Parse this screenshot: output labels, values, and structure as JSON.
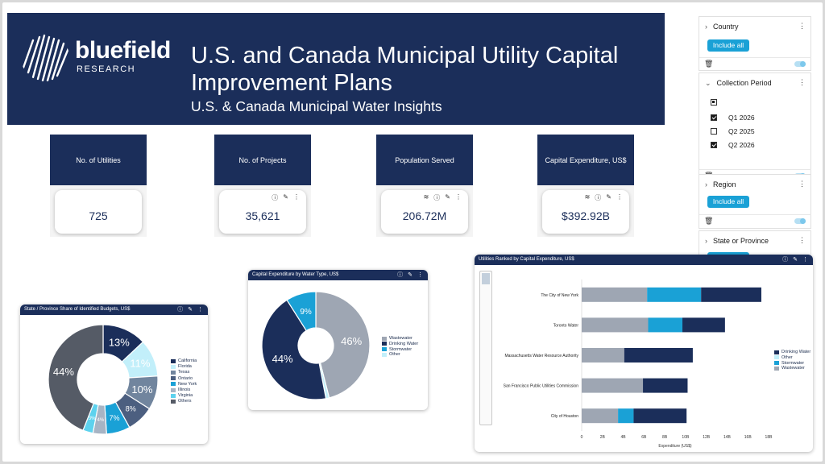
{
  "banner": {
    "logo_word": "bluefield",
    "logo_sub": "RESEARCH",
    "title": "U.S. and Canada Municipal Utility Capital Improvement Plans",
    "subtitle": "U.S. & Canada Municipal Water Insights"
  },
  "kpis": [
    {
      "label": "No. of Utilities",
      "value": "725"
    },
    {
      "label": "No. of Projects",
      "value": "35,621"
    },
    {
      "label": "Population Served",
      "value": "206.72M"
    },
    {
      "label": "Capital Expenditure, US$",
      "value": "$392.92B"
    }
  ],
  "filters": {
    "country": {
      "label": "Country",
      "button": "Include all"
    },
    "collection_period": {
      "label": "Collection Period",
      "options": [
        {
          "label": "Q1 2026",
          "checked": true
        },
        {
          "label": "Q2 2025",
          "checked": false
        },
        {
          "label": "Q2 2026",
          "checked": true
        }
      ]
    },
    "region": {
      "label": "Region",
      "button": "Include all"
    },
    "state": {
      "label": "State or Province"
    }
  },
  "colors": {
    "navy": "#1b2e5a",
    "teal": "#1aa1d6",
    "gray": "#9ea6b3",
    "lightblue": "#5dd2ee"
  },
  "chart_data": [
    {
      "type": "pie",
      "title": "State / Province Share of Identified Budgets, US$",
      "legend_position": "right",
      "slices": [
        {
          "name": "California",
          "value": 13,
          "label": "13%",
          "color": "#1b2e5a"
        },
        {
          "name": "Florida",
          "value": 11,
          "label": "11%",
          "color": "#c2effa"
        },
        {
          "name": "Texas",
          "value": 10,
          "label": "10%",
          "color": "#71859e"
        },
        {
          "name": "Ontario",
          "value": 8,
          "label": "8%",
          "color": "#4c5f80"
        },
        {
          "name": "New York",
          "value": 7,
          "label": "7%",
          "color": "#1aa1d6"
        },
        {
          "name": "Illinois",
          "value": 4,
          "label": "4%",
          "color": "#a7b4c4"
        },
        {
          "name": "Virginia",
          "value": 3,
          "label": "3%",
          "color": "#5dd2ee"
        },
        {
          "name": "Others",
          "value": 44,
          "label": "44%",
          "color": "#555b66"
        }
      ]
    },
    {
      "type": "pie",
      "title": "Capital Expenditure by Water Type, US$",
      "legend_position": "right",
      "slices": [
        {
          "name": "Wastewater",
          "value": 46,
          "label": "46%",
          "color": "#9ea6b3"
        },
        {
          "name": "Other",
          "value": 1,
          "label": "",
          "color": "#c2effa"
        },
        {
          "name": "Drinking Water",
          "value": 44,
          "label": "44%",
          "color": "#1b2e5a"
        },
        {
          "name": "Stormwater",
          "value": 9,
          "label": "9%",
          "color": "#1aa1d6"
        }
      ],
      "legend_order": [
        "Wastewater",
        "Drinking Water",
        "Stormwater",
        "Other"
      ]
    },
    {
      "type": "bar",
      "orientation": "horizontal",
      "stacked": true,
      "title": "Utilities Ranked by Capital Expenditure, US$",
      "xlabel": "Expenditure (US$)",
      "xlim": [
        0,
        18
      ],
      "ticks": [
        "0",
        "2B",
        "4B",
        "6B",
        "8B",
        "10B",
        "12B",
        "14B",
        "16B",
        "18B"
      ],
      "categories": [
        "The City of New York",
        "Toronto Water",
        "Massachusetts Water Resource Authority",
        "San Francisco Public Utilities Commission",
        "City of Houston"
      ],
      "series": [
        {
          "name": "Wastewater",
          "color": "#9ea6b3",
          "values": [
            6.3,
            6.4,
            4.1,
            5.9,
            3.5
          ]
        },
        {
          "name": "Other",
          "color": "#c2effa",
          "values": [
            0,
            0,
            0,
            0,
            0
          ]
        },
        {
          "name": "Stormwater",
          "color": "#1aa1d6",
          "values": [
            5.2,
            3.3,
            0,
            0,
            1.5
          ]
        },
        {
          "name": "Drinking Water",
          "color": "#1b2e5a",
          "values": [
            5.8,
            4.1,
            6.6,
            4.3,
            5.1
          ]
        }
      ],
      "legend_order": [
        "Drinking Water",
        "Other",
        "Stormwater",
        "Wastewater"
      ],
      "legend_position": "right"
    }
  ]
}
